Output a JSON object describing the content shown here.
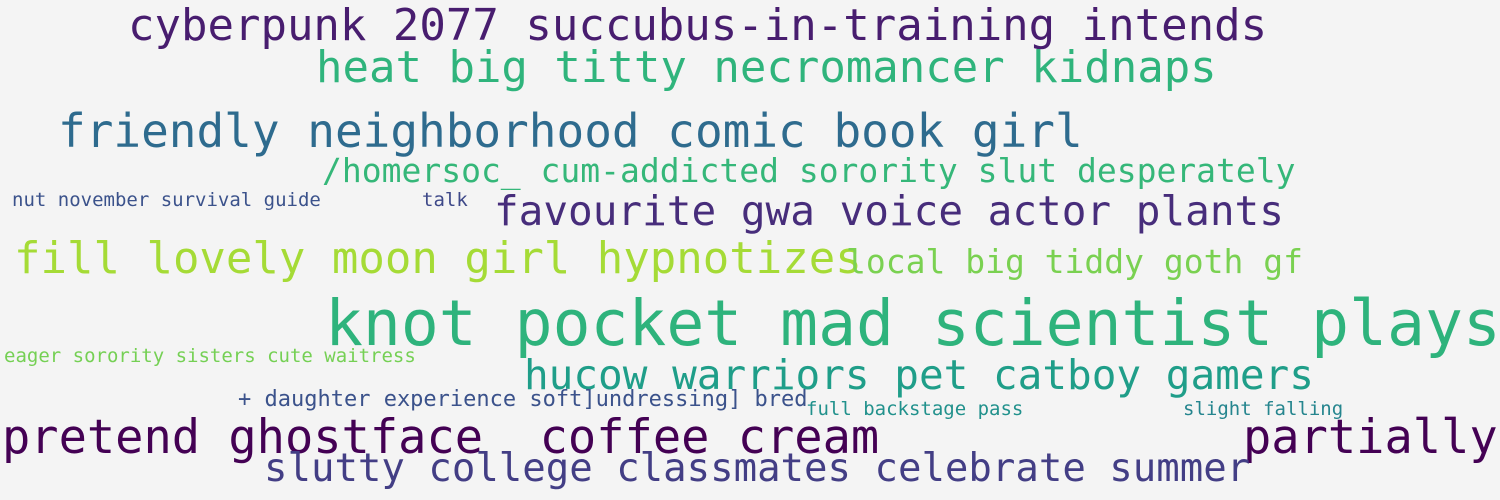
{
  "words": [
    {
      "text": "cyberpunk 2077 succubus-in-training intends",
      "color": "#481d6f"
    },
    {
      "text": "heat big titty necromancer kidnaps",
      "color": "#2fb47c"
    },
    {
      "text": "friendly neighborhood comic book girl",
      "color": "#2e6b8e"
    },
    {
      "text": "/homersoc_ cum-addicted sorority slut desperately",
      "color": "#35b779"
    },
    {
      "text": "nut november survival guide",
      "color": "#3b528b"
    },
    {
      "text": "talk",
      "color": "#3e4989"
    },
    {
      "text": "favourite gwa voice actor plants",
      "color": "#472d7b"
    },
    {
      "text": "fill lovely moon girl hypnotizes",
      "color": "#a5db36"
    },
    {
      "text": "local big tiddy goth gf",
      "color": "#7ad151"
    },
    {
      "text": "knot pocket mad scientist plays",
      "color": "#2eb37c"
    },
    {
      "text": "eager sorority sisters cute waitress",
      "color": "#75d054"
    },
    {
      "text": "hucow warriors pet catboy gamers",
      "color": "#1f9e89"
    },
    {
      "text": "+ daughter experience soft]undressing] bred",
      "color": "#3b528b"
    },
    {
      "text": "full backstage pass",
      "color": "#21918c"
    },
    {
      "text": "slight falling",
      "color": "#25858e"
    },
    {
      "text": "pretend ghostface  coffee cream",
      "color": "#440154"
    },
    {
      "text": "partially",
      "color": "#440154"
    },
    {
      "text": "slutty college classmates celebrate summer",
      "color": "#433e85"
    }
  ]
}
